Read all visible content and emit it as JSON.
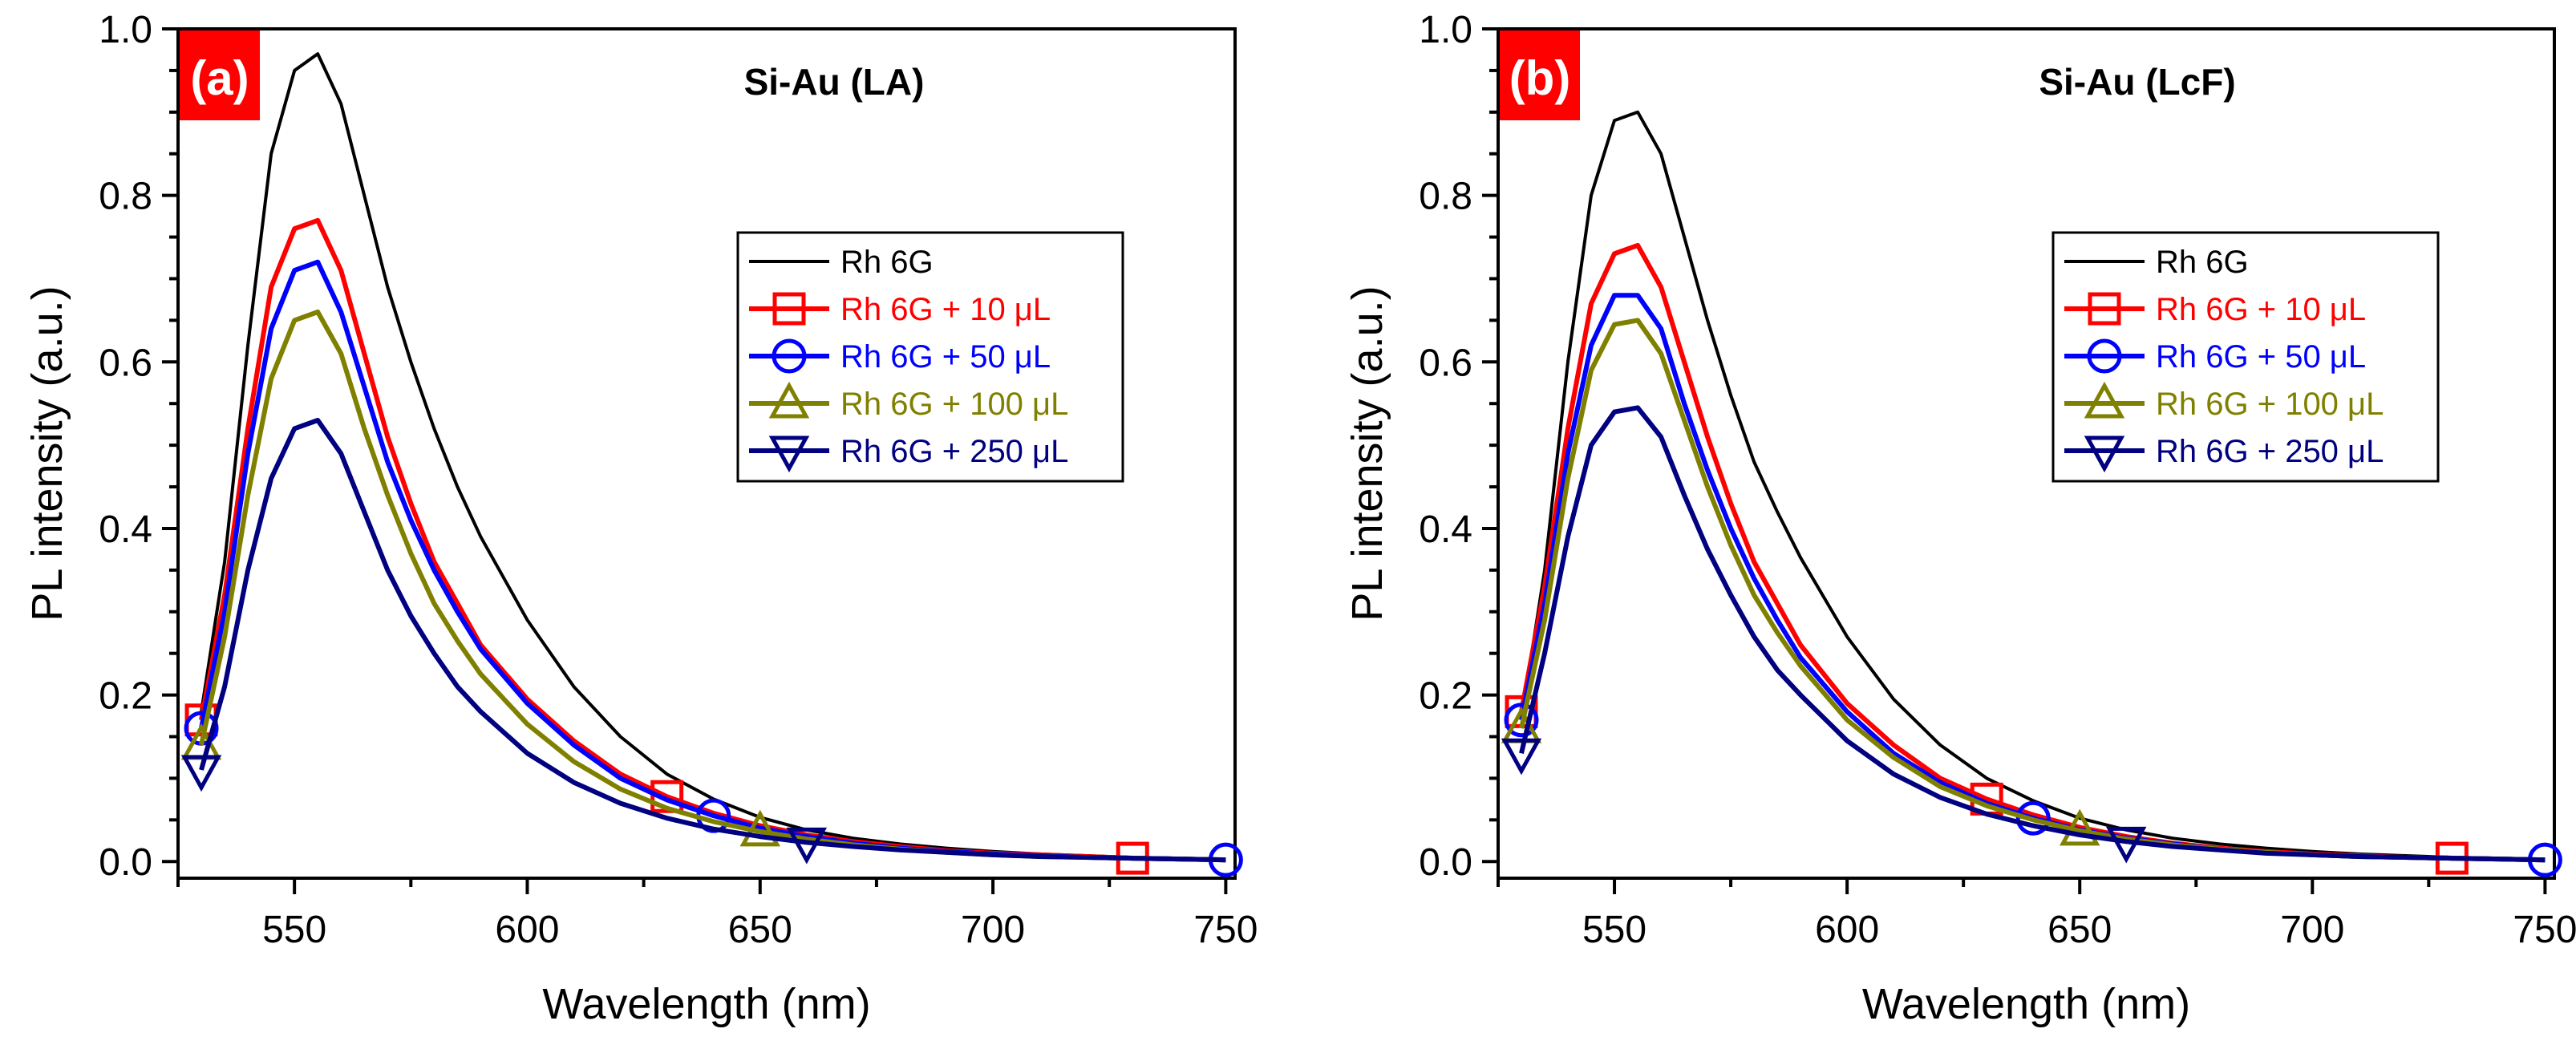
{
  "chart_data": [
    {
      "type": "line",
      "panel_label": "(a)",
      "title": "Si-Au (LA)",
      "xlabel": "Wavelength (nm)",
      "ylabel": "PL intensity (a.u.)",
      "xlim": [
        525,
        752
      ],
      "ylim": [
        -0.02,
        1.0
      ],
      "xticks": [
        550,
        600,
        650,
        700,
        750
      ],
      "yticks": [
        0.0,
        0.2,
        0.4,
        0.6,
        0.8,
        1.0
      ],
      "ytick_labels": [
        "0.0",
        "0.2",
        "0.4",
        "0.6",
        "0.8",
        "1.0"
      ],
      "x": [
        530,
        535,
        540,
        545,
        550,
        555,
        560,
        565,
        570,
        575,
        580,
        585,
        590,
        600,
        610,
        620,
        630,
        640,
        650,
        660,
        670,
        680,
        690,
        700,
        710,
        720,
        730,
        740,
        750
      ],
      "series": [
        {
          "name": "Rh 6G",
          "color": "#000000",
          "marker": "none",
          "values": [
            0.18,
            0.36,
            0.62,
            0.85,
            0.95,
            0.97,
            0.91,
            0.8,
            0.69,
            0.6,
            0.52,
            0.45,
            0.39,
            0.29,
            0.21,
            0.15,
            0.105,
            0.075,
            0.053,
            0.038,
            0.028,
            0.021,
            0.016,
            0.012,
            0.009,
            0.007,
            0.005,
            0.004,
            0.003
          ]
        },
        {
          "name": "Rh 6G +   10 μL",
          "color": "#ff0000",
          "marker": "square",
          "marker_x": [
            530,
            630,
            730
          ],
          "values": [
            0.17,
            0.32,
            0.52,
            0.69,
            0.76,
            0.77,
            0.71,
            0.61,
            0.51,
            0.43,
            0.36,
            0.31,
            0.26,
            0.195,
            0.145,
            0.105,
            0.078,
            0.058,
            0.043,
            0.032,
            0.024,
            0.018,
            0.013,
            0.01,
            0.008,
            0.006,
            0.004,
            0.003,
            0.002
          ]
        },
        {
          "name": "Rh 6G +   50 μL",
          "color": "#0000ff",
          "marker": "circle",
          "marker_x": [
            530,
            640,
            750
          ],
          "values": [
            0.16,
            0.3,
            0.49,
            0.64,
            0.71,
            0.72,
            0.66,
            0.57,
            0.48,
            0.41,
            0.35,
            0.3,
            0.255,
            0.19,
            0.14,
            0.1,
            0.074,
            0.055,
            0.04,
            0.03,
            0.022,
            0.016,
            0.012,
            0.009,
            0.007,
            0.005,
            0.004,
            0.003,
            0.002
          ]
        },
        {
          "name": "Rh 6G + 100 μL",
          "color": "#808000",
          "marker": "triangle-up",
          "marker_x": [
            530,
            650
          ],
          "values": [
            0.14,
            0.27,
            0.44,
            0.58,
            0.65,
            0.66,
            0.61,
            0.52,
            0.44,
            0.37,
            0.31,
            0.265,
            0.225,
            0.165,
            0.12,
            0.087,
            0.064,
            0.048,
            0.036,
            0.027,
            0.02,
            0.015,
            0.011,
            0.008,
            0.006,
            0.005,
            0.004,
            0.003,
            0.002
          ]
        },
        {
          "name": "Rh 6G + 250 μL",
          "color": "#000080",
          "marker": "triangle-down",
          "marker_x": [
            530,
            660
          ],
          "values": [
            0.11,
            0.21,
            0.35,
            0.46,
            0.52,
            0.53,
            0.49,
            0.42,
            0.35,
            0.295,
            0.25,
            0.21,
            0.18,
            0.13,
            0.095,
            0.07,
            0.052,
            0.039,
            0.03,
            0.023,
            0.018,
            0.014,
            0.011,
            0.008,
            0.006,
            0.005,
            0.004,
            0.003,
            0.002
          ]
        }
      ]
    },
    {
      "type": "line",
      "panel_label": "(b)",
      "title": "Si-Au (LcF)",
      "xlabel": "Wavelength (nm)",
      "ylabel": "PL intensity (a.u.)",
      "xlim": [
        525,
        752
      ],
      "ylim": [
        -0.02,
        1.0
      ],
      "xticks": [
        550,
        600,
        650,
        700,
        750
      ],
      "yticks": [
        0.0,
        0.2,
        0.4,
        0.6,
        0.8,
        1.0
      ],
      "ytick_labels": [
        "0.0",
        "0.2",
        "0.4",
        "0.6",
        "0.8",
        "1.0"
      ],
      "x": [
        530,
        535,
        540,
        545,
        550,
        555,
        560,
        565,
        570,
        575,
        580,
        585,
        590,
        600,
        610,
        620,
        630,
        640,
        650,
        660,
        670,
        680,
        690,
        700,
        710,
        720,
        730,
        740,
        750
      ],
      "series": [
        {
          "name": "Rh 6G",
          "color": "#000000",
          "marker": "none",
          "values": [
            0.17,
            0.35,
            0.6,
            0.8,
            0.89,
            0.9,
            0.85,
            0.75,
            0.65,
            0.56,
            0.48,
            0.42,
            0.365,
            0.27,
            0.195,
            0.14,
            0.1,
            0.073,
            0.052,
            0.038,
            0.028,
            0.021,
            0.016,
            0.012,
            0.009,
            0.007,
            0.005,
            0.004,
            0.003
          ]
        },
        {
          "name": "Rh 6G +   10 μL",
          "color": "#ff0000",
          "marker": "square",
          "marker_x": [
            530,
            630,
            730
          ],
          "values": [
            0.18,
            0.33,
            0.52,
            0.67,
            0.73,
            0.74,
            0.69,
            0.6,
            0.51,
            0.43,
            0.36,
            0.31,
            0.26,
            0.19,
            0.14,
            0.1,
            0.075,
            0.056,
            0.041,
            0.03,
            0.022,
            0.016,
            0.012,
            0.009,
            0.007,
            0.005,
            0.004,
            0.003,
            0.002
          ]
        },
        {
          "name": "Rh 6G +   50 μL",
          "color": "#0000ff",
          "marker": "circle",
          "marker_x": [
            530,
            640,
            750
          ],
          "values": [
            0.17,
            0.31,
            0.49,
            0.62,
            0.68,
            0.68,
            0.64,
            0.55,
            0.47,
            0.4,
            0.34,
            0.29,
            0.245,
            0.18,
            0.13,
            0.095,
            0.07,
            0.052,
            0.038,
            0.028,
            0.021,
            0.015,
            0.011,
            0.008,
            0.006,
            0.005,
            0.004,
            0.003,
            0.002
          ]
        },
        {
          "name": "Rh 6G + 100 μL",
          "color": "#808000",
          "marker": "triangle-up",
          "marker_x": [
            530,
            650
          ],
          "values": [
            0.16,
            0.29,
            0.46,
            0.59,
            0.645,
            0.65,
            0.61,
            0.53,
            0.45,
            0.38,
            0.32,
            0.275,
            0.235,
            0.17,
            0.125,
            0.09,
            0.067,
            0.05,
            0.037,
            0.027,
            0.02,
            0.015,
            0.011,
            0.008,
            0.006,
            0.005,
            0.004,
            0.003,
            0.002
          ]
        },
        {
          "name": "Rh 6G + 250 μL",
          "color": "#000080",
          "marker": "triangle-down",
          "marker_x": [
            530,
            660
          ],
          "values": [
            0.13,
            0.25,
            0.39,
            0.5,
            0.54,
            0.545,
            0.51,
            0.44,
            0.375,
            0.32,
            0.27,
            0.23,
            0.2,
            0.145,
            0.105,
            0.077,
            0.057,
            0.043,
            0.032,
            0.024,
            0.018,
            0.014,
            0.01,
            0.008,
            0.006,
            0.005,
            0.004,
            0.003,
            0.002
          ]
        }
      ]
    }
  ]
}
